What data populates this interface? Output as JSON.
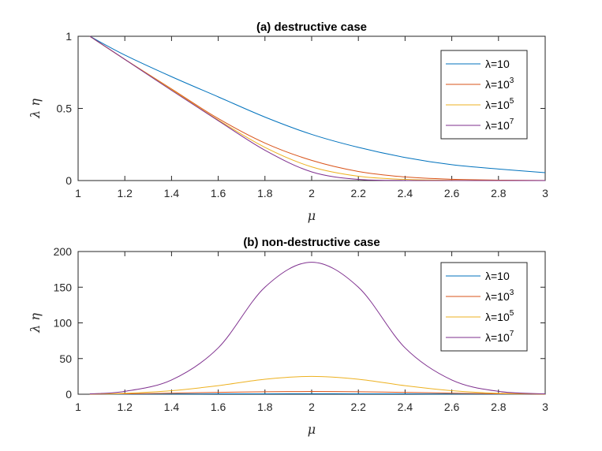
{
  "chart_data": [
    {
      "type": "line",
      "title": "(a) destructive case",
      "xlabel": "μ",
      "ylabel": "λ η",
      "xlim": [
        1,
        3
      ],
      "ylim": [
        0,
        1
      ],
      "xticks": [
        "1",
        "1.2",
        "1.4",
        "1.6",
        "1.8",
        "2",
        "2.2",
        "2.4",
        "2.6",
        "2.8",
        "3"
      ],
      "yticks": [
        "0",
        "0.5",
        "1"
      ],
      "grid": false,
      "legend_position": "top-right",
      "x": [
        1.05,
        1.2,
        1.4,
        1.6,
        1.8,
        2.0,
        2.2,
        2.4,
        2.6,
        2.8,
        3.0
      ],
      "series": [
        {
          "name": "λ=10",
          "label_base": "λ=10",
          "label_sup": "",
          "color": "#0072BD",
          "values": [
            1.0,
            0.87,
            0.72,
            0.58,
            0.44,
            0.32,
            0.23,
            0.16,
            0.11,
            0.08,
            0.055
          ]
        },
        {
          "name": "λ=10^3",
          "label_base": "λ=10",
          "label_sup": "3",
          "color": "#D95319",
          "values": [
            1.0,
            0.84,
            0.635,
            0.43,
            0.26,
            0.14,
            0.063,
            0.025,
            0.009,
            0.003,
            0.001
          ]
        },
        {
          "name": "λ=10^5",
          "label_base": "λ=10",
          "label_sup": "5",
          "color": "#EDB120",
          "values": [
            1.0,
            0.84,
            0.63,
            0.42,
            0.23,
            0.095,
            0.03,
            0.008,
            0.002,
            0.0005,
            0.0001
          ]
        },
        {
          "name": "λ=10^7",
          "label_base": "λ=10",
          "label_sup": "7",
          "color": "#7E2F8E",
          "values": [
            1.0,
            0.84,
            0.625,
            0.415,
            0.21,
            0.06,
            0.008,
            0.001,
            0.0002,
            0.0,
            0.0
          ]
        }
      ]
    },
    {
      "type": "line",
      "title": "(b) non-destructive case",
      "xlabel": "μ",
      "ylabel": "λ η",
      "xlim": [
        1,
        3
      ],
      "ylim": [
        0,
        200
      ],
      "xticks": [
        "1",
        "1.2",
        "1.4",
        "1.6",
        "1.8",
        "2",
        "2.2",
        "2.4",
        "2.6",
        "2.8",
        "3"
      ],
      "yticks": [
        "0",
        "50",
        "100",
        "150",
        "200"
      ],
      "grid": false,
      "legend_position": "top-right",
      "x": [
        1.05,
        1.2,
        1.4,
        1.6,
        1.8,
        2.0,
        2.2,
        2.4,
        2.6,
        2.8,
        3.0
      ],
      "series": [
        {
          "name": "λ=10",
          "label_base": "λ=10",
          "label_sup": "",
          "color": "#0072BD",
          "values": [
            0.1,
            0.2,
            0.35,
            0.5,
            0.6,
            0.65,
            0.6,
            0.5,
            0.35,
            0.2,
            0.1
          ]
        },
        {
          "name": "λ=10^3",
          "label_base": "λ=10",
          "label_sup": "3",
          "color": "#D95319",
          "values": [
            0.2,
            0.6,
            1.5,
            2.6,
            3.5,
            3.8,
            3.5,
            2.6,
            1.5,
            0.6,
            0.2
          ]
        },
        {
          "name": "λ=10^5",
          "label_base": "λ=10",
          "label_sup": "5",
          "color": "#EDB120",
          "values": [
            0.3,
            1.3,
            5,
            12,
            21,
            25,
            21,
            12,
            5,
            1.3,
            0.3
          ]
        },
        {
          "name": "λ=10^7",
          "label_base": "λ=10",
          "label_sup": "7",
          "color": "#7E2F8E",
          "values": [
            0.5,
            4,
            20,
            65,
            150,
            185,
            150,
            65,
            20,
            4,
            0.5
          ]
        }
      ]
    }
  ]
}
